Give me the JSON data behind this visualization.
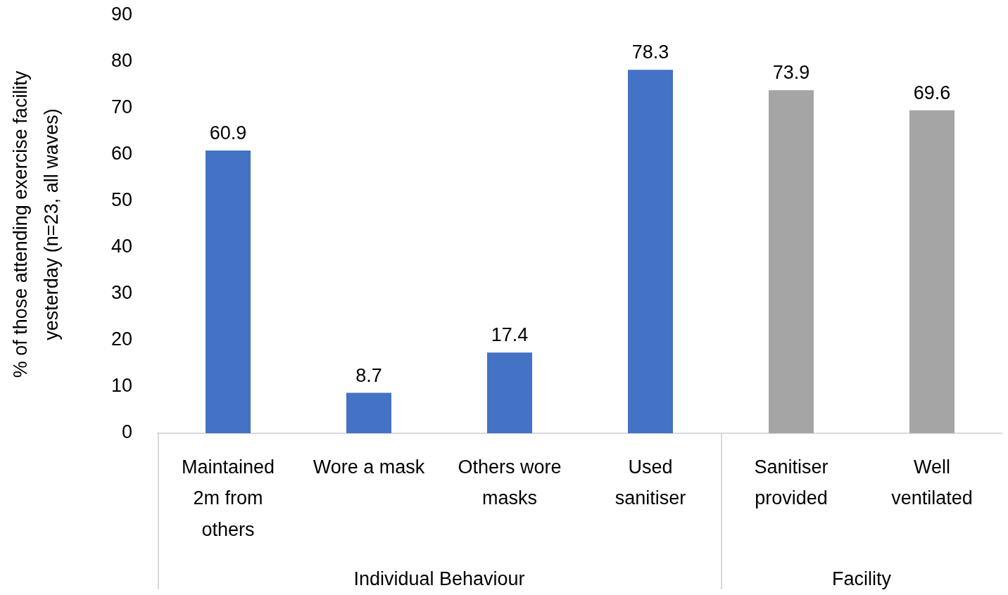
{
  "chart_data": {
    "type": "bar",
    "ylabel": "% of those attending exercise facility yesterday (n=23, all waves)",
    "categories": [
      "Maintained 2m from others",
      "Wore a mask",
      "Others wore masks",
      "Used sanitiser",
      "Sanitiser provided",
      "Well ventilated"
    ],
    "values": [
      60.9,
      8.7,
      17.4,
      78.3,
      73.9,
      69.6
    ],
    "colors": [
      "#4472c4",
      "#4472c4",
      "#4472c4",
      "#4472c4",
      "#a5a5a5",
      "#a5a5a5"
    ],
    "annotations": [
      "Individual Behaviour",
      "Facility"
    ],
    "ylim": [
      0,
      90
    ],
    "yticks": [
      0,
      10,
      20,
      30,
      40,
      50,
      60,
      70,
      80,
      90
    ],
    "data_labels": true
  }
}
